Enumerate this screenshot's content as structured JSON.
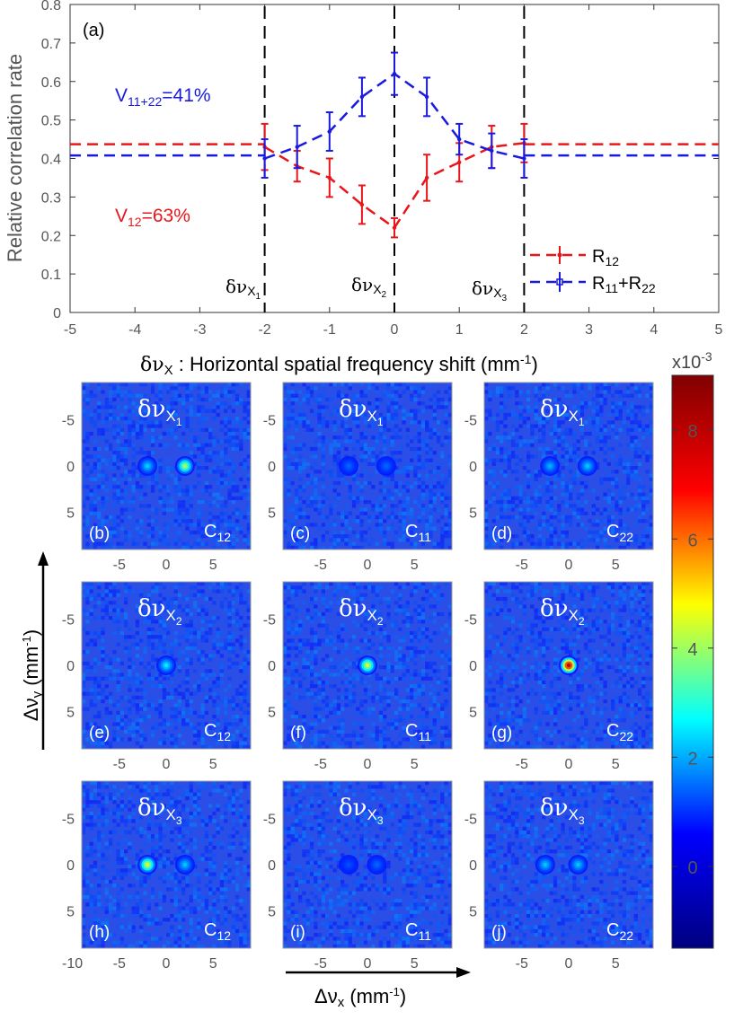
{
  "chart_data": [
    {
      "type": "line",
      "panel_label": "(a)",
      "xlabel_symbol": "δν",
      "xlabel_sub": "X",
      "xlabel_text": " : Horizontal spatial frequency shift (mm",
      "xlabel_sup": "-1",
      "xlabel_close": ")",
      "ylabel": "Relative correlation rate",
      "xlim": [
        -5,
        5
      ],
      "ylim": [
        0,
        0.8
      ],
      "xticks": [
        "-5",
        "-4",
        "-3",
        "-2",
        "-1",
        "0",
        "1",
        "2",
        "3",
        "4",
        "5"
      ],
      "yticks": [
        "0",
        "0.1",
        "0.2",
        "0.3",
        "0.4",
        "0.5",
        "0.6",
        "0.7",
        "0.8"
      ],
      "grid": false,
      "legend_position": "bottom-right",
      "series": [
        {
          "name": "R",
          "name_sub": "12",
          "color": "#e8161b",
          "x": [
            -2,
            -1.5,
            -1,
            -0.5,
            0,
            0.5,
            1,
            1.5,
            2
          ],
          "y": [
            0.43,
            0.38,
            0.35,
            0.28,
            0.22,
            0.35,
            0.39,
            0.43,
            0.44
          ],
          "err": [
            0.06,
            0.04,
            0.05,
            0.05,
            0.025,
            0.06,
            0.05,
            0.055,
            0.05
          ],
          "baseline": 0.437
        },
        {
          "name": "R",
          "name_sub": "11",
          "name_mid": "+R",
          "name_sub2": "22",
          "color": "#1a1adf",
          "x": [
            -2,
            -1.5,
            -1,
            -0.5,
            0,
            0.5,
            1,
            1.5,
            2
          ],
          "y": [
            0.4,
            0.43,
            0.47,
            0.56,
            0.62,
            0.56,
            0.45,
            0.42,
            0.4
          ],
          "err": [
            0.05,
            0.055,
            0.05,
            0.05,
            0.055,
            0.05,
            0.04,
            0.045,
            0.05
          ],
          "baseline": 0.408
        }
      ],
      "vlines": [
        {
          "x": -2,
          "label": "δν",
          "sub": "X",
          "subsub": "1"
        },
        {
          "x": 0,
          "label": "δν",
          "sub": "X",
          "subsub": "2"
        },
        {
          "x": 2,
          "label": "δν",
          "sub": "X",
          "subsub": "3"
        }
      ],
      "annotations": [
        {
          "text": "V",
          "sub": "11+22",
          "rest": "=41%",
          "color": "#1a1adf"
        },
        {
          "text": "V",
          "sub": "12",
          "rest": "=63%",
          "color": "#e8161b"
        }
      ]
    },
    {
      "type": "heatmap",
      "ylabel": "Δν",
      "ylabel_sub": "y",
      "ylabel_unit": " (mm",
      "ylabel_sup": "-1",
      "ylabel_close": ")",
      "xlabel": "Δν",
      "xlabel_sub": "x",
      "xlabel_unit": " (mm",
      "xlabel_sup": "-1",
      "xlabel_close": ")",
      "yticks": [
        "-5",
        "0",
        "5"
      ],
      "colorbar": {
        "min": -1.5,
        "max": 9,
        "ticks": [
          "0",
          "2",
          "4",
          "6",
          "8"
        ],
        "exponent": "x10",
        "exponent_sup": "-3",
        "colors": [
          "#000080",
          "#0000ff",
          "#00ffff",
          "#ffff00",
          "#ff0000",
          "#800000"
        ]
      },
      "panels": [
        {
          "label": "(b)",
          "c": "C",
          "c_sub": "12",
          "shift": "δν",
          "shift_sub": "X",
          "shift_subsub": "1",
          "xticks": [
            "-5",
            "0",
            "5"
          ],
          "background": "#2a4ee6",
          "spots": [
            {
              "x": -2,
              "y": 0,
              "value": 2.5
            },
            {
              "x": 2,
              "y": 0,
              "value": 4.5
            }
          ]
        },
        {
          "label": "(c)",
          "c": "C",
          "c_sub": "11",
          "shift": "δν",
          "shift_sub": "X",
          "shift_subsub": "1",
          "xticks": [
            "-5",
            "0",
            "5"
          ],
          "background": "#2a4ee6",
          "spots": [
            {
              "x": -2,
              "y": 0,
              "value": 1.5
            },
            {
              "x": 2,
              "y": 0,
              "value": 1.5
            }
          ]
        },
        {
          "label": "(d)",
          "c": "C",
          "c_sub": "22",
          "shift": "δν",
          "shift_sub": "X",
          "shift_subsub": "1",
          "xticks": [
            "-5",
            "0",
            "5"
          ],
          "background": "#2a4ee6",
          "spots": [
            {
              "x": -2,
              "y": 0,
              "value": 2.2
            },
            {
              "x": 2,
              "y": 0,
              "value": 2.4
            }
          ]
        },
        {
          "label": "(e)",
          "c": "C",
          "c_sub": "12",
          "shift": "δν",
          "shift_sub": "X",
          "shift_subsub": "2",
          "xticks": [
            "-5",
            "0",
            "5"
          ],
          "background": "#2a4ee6",
          "spots": [
            {
              "x": 0,
              "y": 0,
              "value": 2.8
            }
          ]
        },
        {
          "label": "(f)",
          "c": "C",
          "c_sub": "11",
          "shift": "δν",
          "shift_sub": "X",
          "shift_subsub": "2",
          "xticks": [
            "-5",
            "0",
            "5"
          ],
          "background": "#2a4ee6",
          "spots": [
            {
              "x": 0,
              "y": 0,
              "value": 5
            }
          ]
        },
        {
          "label": "(g)",
          "c": "C",
          "c_sub": "22",
          "shift": "δν",
          "shift_sub": "X",
          "shift_subsub": "2",
          "xticks": [
            "-5",
            "0",
            "5"
          ],
          "background": "#2a4ee6",
          "spots": [
            {
              "x": 0,
              "y": 0,
              "value": 9
            }
          ]
        },
        {
          "label": "(h)",
          "c": "C",
          "c_sub": "12",
          "shift": "δν",
          "shift_sub": "X",
          "shift_subsub": "3",
          "xticks": [
            "-10",
            "-5",
            "0",
            "5"
          ],
          "background": "#2a4ee6",
          "spots": [
            {
              "x": -2,
              "y": 0,
              "value": 5
            },
            {
              "x": 2,
              "y": 0,
              "value": 2.4
            }
          ]
        },
        {
          "label": "(i)",
          "c": "C",
          "c_sub": "11",
          "shift": "δν",
          "shift_sub": "X",
          "shift_subsub": "3",
          "xticks": [
            "-5",
            "0",
            "5"
          ],
          "background": "#2a4ee6",
          "spots": [
            {
              "x": -2,
              "y": 0,
              "value": 1.3
            },
            {
              "x": 1,
              "y": 0,
              "value": 1.5
            }
          ]
        },
        {
          "label": "(j)",
          "c": "C",
          "c_sub": "22",
          "shift": "δν",
          "shift_sub": "X",
          "shift_subsub": "3",
          "xticks": [
            "-5",
            "0",
            "5"
          ],
          "background": "#2a4ee6",
          "spots": [
            {
              "x": -2.5,
              "y": 0,
              "value": 2.4
            },
            {
              "x": 1,
              "y": 0,
              "value": 2.4
            }
          ]
        }
      ]
    }
  ]
}
